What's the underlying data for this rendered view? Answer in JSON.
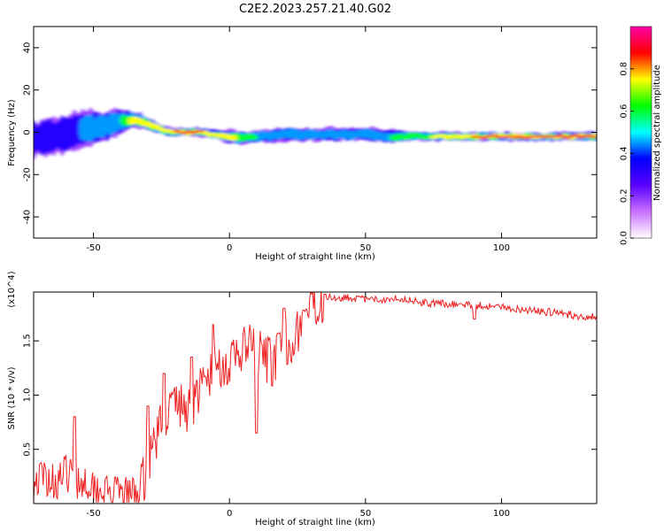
{
  "chart_data": [
    {
      "type": "heatmap",
      "title": "C2E2.2023.257.21.40.G02",
      "xlabel": "Height of straight line (km)",
      "ylabel": "Frequency (Hz)",
      "xlim": [
        -72,
        135
      ],
      "ylim": [
        -50,
        50
      ],
      "xticks": [
        -50,
        0,
        50,
        100
      ],
      "yticks": [
        -40,
        -20,
        0,
        20,
        40
      ],
      "colorbar": {
        "label": "Normalized spectral amplitude",
        "range": [
          0,
          1
        ],
        "ticks": [
          0.0,
          0.2,
          0.4,
          0.6,
          0.8
        ],
        "colors": [
          "#ffffff",
          "#c870ff",
          "#5a00ff",
          "#0000ff",
          "#00ffff",
          "#00ff00",
          "#ffff00",
          "#ff0000",
          "#ff00aa"
        ]
      },
      "ridge": {
        "x": [
          -72,
          -65,
          -60,
          -55,
          -50,
          -45,
          -40,
          -35,
          -30,
          -25,
          -20,
          -15,
          -10,
          -5,
          0,
          5,
          10,
          20,
          30,
          40,
          50,
          60,
          70,
          80,
          90,
          100,
          110,
          120,
          135
        ],
        "frequency": [
          -3,
          -2,
          -1,
          1,
          2,
          3,
          5,
          6,
          4,
          1,
          0,
          0,
          0,
          -1,
          -2,
          -3,
          -2,
          -1,
          -1,
          -1,
          -1,
          -2,
          -2,
          -2,
          -2,
          -2,
          -2,
          -2,
          -2
        ],
        "amplitude": [
          0.3,
          0.35,
          0.35,
          0.4,
          0.4,
          0.45,
          0.55,
          0.75,
          0.8,
          0.8,
          0.85,
          0.85,
          0.85,
          0.75,
          0.75,
          0.6,
          0.55,
          0.45,
          0.45,
          0.45,
          0.45,
          0.55,
          0.6,
          0.8,
          0.85,
          0.85,
          0.9,
          0.9,
          0.9
        ],
        "spread_hz": [
          8,
          9,
          9,
          9,
          8,
          7,
          6,
          4,
          3,
          2,
          2,
          2,
          2,
          2,
          3,
          3,
          3,
          3,
          3,
          3,
          3,
          3,
          2,
          2,
          2,
          2,
          2,
          2,
          2
        ]
      }
    },
    {
      "type": "line",
      "title": "",
      "xlabel": "Height of straight line (km)",
      "ylabel": "SNR (10 * v/v)",
      "y_multiplier": "(x10^4)",
      "xlim": [
        -72,
        135
      ],
      "ylim": [
        0,
        1.95
      ],
      "xticks": [
        -50,
        0,
        50,
        100
      ],
      "yticks": [
        0.5,
        1.0,
        1.5
      ],
      "color": "#ee2222",
      "x": [
        -72,
        -68,
        -64,
        -60,
        -56,
        -52,
        -48,
        -44,
        -40,
        -36,
        -32,
        -28,
        -24,
        -20,
        -16,
        -12,
        -8,
        -4,
        0,
        4,
        8,
        12,
        16,
        20,
        24,
        28,
        32,
        36,
        40,
        44,
        50,
        56,
        60,
        66,
        72,
        80,
        88,
        96,
        104,
        112,
        120,
        128,
        135
      ],
      "y": [
        0.2,
        0.25,
        0.2,
        0.28,
        0.22,
        0.2,
        0.15,
        0.08,
        0.07,
        0.08,
        0.18,
        0.55,
        0.8,
        0.95,
        0.85,
        1.0,
        1.15,
        1.3,
        1.25,
        1.4,
        1.45,
        1.35,
        1.3,
        1.45,
        1.55,
        1.75,
        1.85,
        1.9,
        1.9,
        1.9,
        1.88,
        1.88,
        1.9,
        1.88,
        1.85,
        1.84,
        1.83,
        1.82,
        1.8,
        1.78,
        1.76,
        1.73,
        1.72
      ],
      "spikes": [
        {
          "x": -57,
          "y": 0.8
        },
        {
          "x": -30,
          "y": 0.9
        },
        {
          "x": -24,
          "y": 1.2
        },
        {
          "x": -14,
          "y": 1.35
        },
        {
          "x": -6,
          "y": 1.65
        },
        {
          "x": 10,
          "y": 0.65
        },
        {
          "x": 20,
          "y": 1.8
        },
        {
          "x": 35,
          "y": 1.93
        },
        {
          "x": 90,
          "y": 1.7
        }
      ]
    }
  ]
}
